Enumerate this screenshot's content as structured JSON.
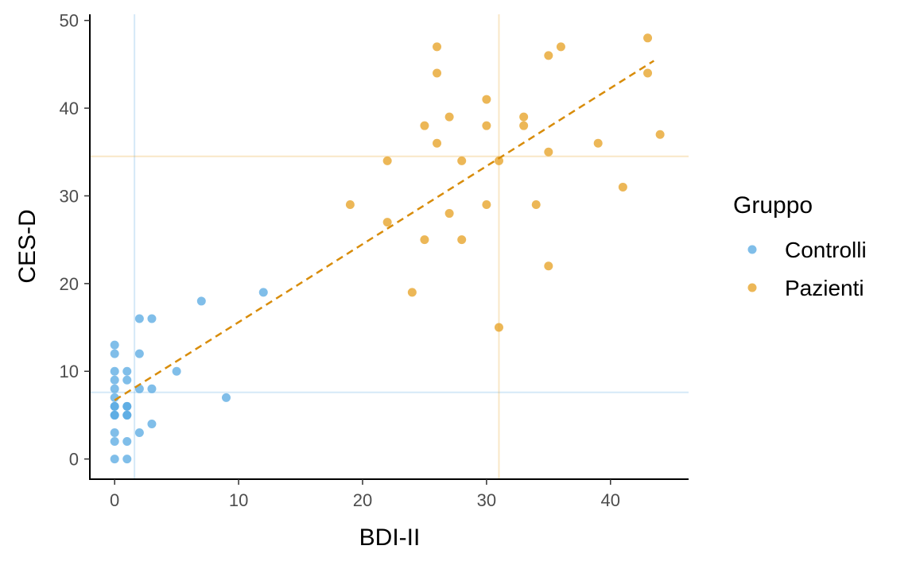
{
  "chart_data": {
    "type": "scatter",
    "title": "",
    "xlabel": "BDI-II",
    "ylabel": "CES-D",
    "xlim": [
      -2,
      46.3
    ],
    "ylim": [
      -2.3,
      50.7
    ],
    "xticks": [
      0,
      10,
      20,
      30,
      40
    ],
    "yticks": [
      0,
      10,
      20,
      30,
      40,
      50
    ],
    "grid": false,
    "legend": {
      "title": "Gruppo",
      "placement": "right"
    },
    "series": [
      {
        "name": "Controlli",
        "color": "#56a8e2",
        "mean_x": 1.6,
        "mean_y": 7.6,
        "points": [
          [
            0,
            13
          ],
          [
            0,
            12
          ],
          [
            0,
            10
          ],
          [
            0,
            9
          ],
          [
            0,
            8
          ],
          [
            0,
            7
          ],
          [
            0,
            6
          ],
          [
            0,
            6
          ],
          [
            0,
            5
          ],
          [
            0,
            5
          ],
          [
            0,
            3
          ],
          [
            0,
            2
          ],
          [
            0,
            0
          ],
          [
            1,
            10
          ],
          [
            1,
            9
          ],
          [
            1,
            6
          ],
          [
            1,
            6
          ],
          [
            1,
            5
          ],
          [
            1,
            5
          ],
          [
            1,
            2
          ],
          [
            1,
            0
          ],
          [
            2,
            16
          ],
          [
            2,
            12
          ],
          [
            2,
            8
          ],
          [
            2,
            3
          ],
          [
            3,
            16
          ],
          [
            3,
            8
          ],
          [
            3,
            4
          ],
          [
            5,
            10
          ],
          [
            7,
            18
          ],
          [
            9,
            7
          ],
          [
            12,
            19
          ]
        ]
      },
      {
        "name": "Pazienti",
        "color": "#e69f1f",
        "mean_x": 31,
        "mean_y": 34.5,
        "points": [
          [
            19,
            29
          ],
          [
            22,
            34
          ],
          [
            22,
            27
          ],
          [
            24,
            19
          ],
          [
            25,
            38
          ],
          [
            25,
            25
          ],
          [
            26,
            47
          ],
          [
            26,
            44
          ],
          [
            26,
            36
          ],
          [
            27,
            39
          ],
          [
            27,
            28
          ],
          [
            28,
            34
          ],
          [
            28,
            25
          ],
          [
            30,
            41
          ],
          [
            30,
            38
          ],
          [
            30,
            29
          ],
          [
            31,
            34
          ],
          [
            31,
            15
          ],
          [
            33,
            39
          ],
          [
            33,
            38
          ],
          [
            34,
            29
          ],
          [
            35,
            46
          ],
          [
            35,
            35
          ],
          [
            35,
            22
          ],
          [
            36,
            47
          ],
          [
            39,
            36
          ],
          [
            41,
            31
          ],
          [
            43,
            48
          ],
          [
            43,
            44
          ],
          [
            44,
            37
          ]
        ]
      }
    ],
    "regression_line": {
      "style": "dashed",
      "color": "#d88c0a",
      "from": [
        0,
        6.7
      ],
      "to": [
        43.5,
        45.4
      ]
    }
  }
}
